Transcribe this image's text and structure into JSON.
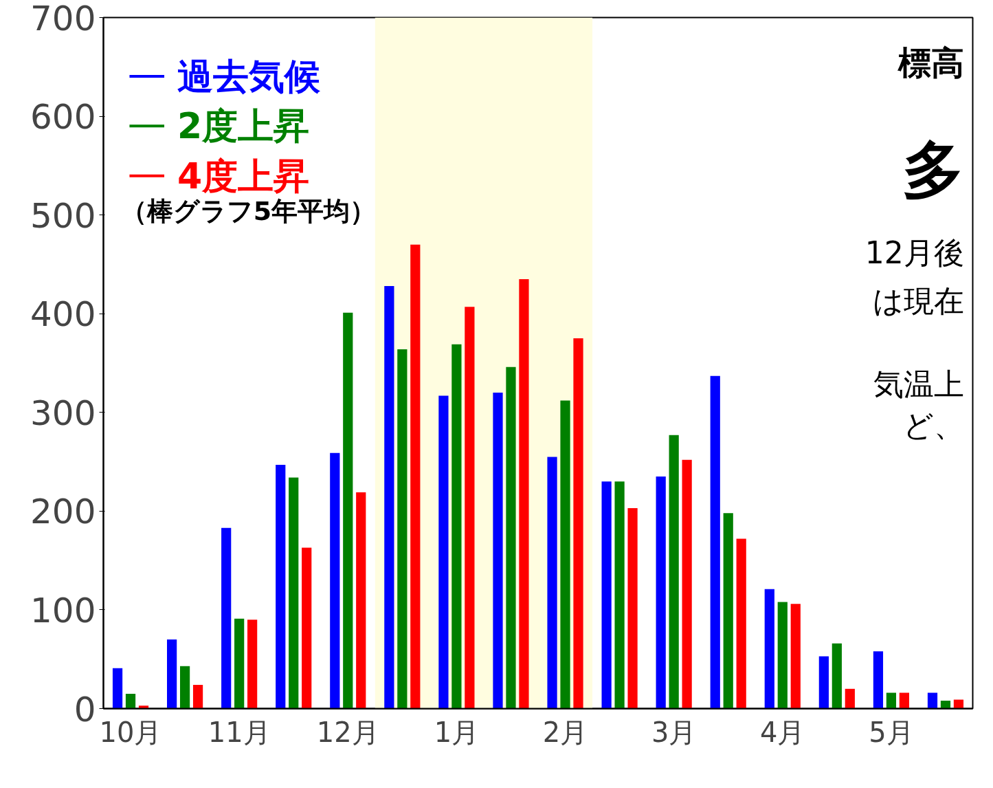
{
  "chart_data": {
    "type": "bar",
    "categories": [
      "10月",
      null,
      "11月",
      null,
      "12月",
      null,
      "1月",
      null,
      "2月",
      null,
      "3月",
      null,
      "4月",
      null,
      "5月",
      null
    ],
    "series": [
      {
        "name": "過去気候",
        "color": "#0000ff",
        "values": [
          41,
          70,
          183,
          247,
          259,
          428,
          317,
          320,
          255,
          230,
          235,
          337,
          121,
          53,
          58,
          16
        ]
      },
      {
        "name": "2度上昇",
        "color": "#008000",
        "values": [
          15,
          43,
          91,
          234,
          401,
          364,
          369,
          346,
          312,
          230,
          277,
          198,
          108,
          66,
          16,
          8
        ]
      },
      {
        "name": "4度上昇",
        "color": "#ff0000",
        "values": [
          3,
          24,
          90,
          163,
          219,
          470,
          407,
          435,
          375,
          203,
          252,
          172,
          106,
          20,
          16,
          9
        ]
      }
    ],
    "ylim": [
      0,
      700
    ],
    "yticks": [
      0,
      100,
      200,
      300,
      400,
      500,
      600,
      700
    ],
    "bands": [
      {
        "axis": "x",
        "from": "12月",
        "to": "2月",
        "color": "#fffde0"
      }
    ],
    "legend": "top left",
    "annotations": [
      "（棒グラフ5年平均）",
      "標高",
      "多",
      "12月後",
      "は現在",
      "気温上",
      "ど、"
    ]
  }
}
